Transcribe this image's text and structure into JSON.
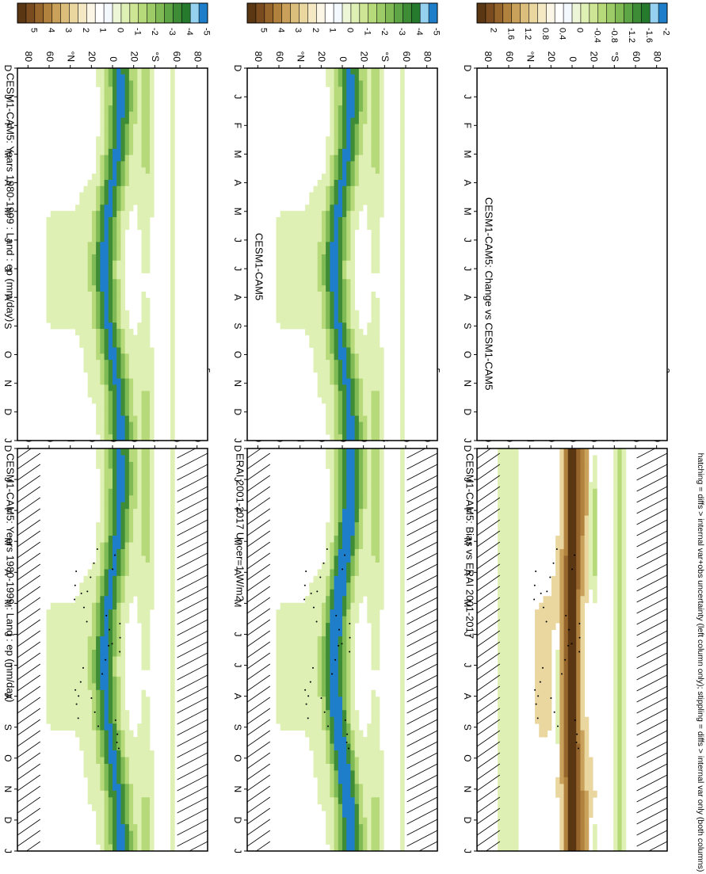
{
  "figure": {
    "footnote": "hatching = diffs > internal var+obs uncertainty (left column only); stippling = diffs > internal var only (both columns)"
  },
  "colors": {
    "brown_to_blue": [
      "#5a3612",
      "#7a4b1e",
      "#96652c",
      "#b0823e",
      "#c9a15a",
      "#dbbd7c",
      "#ead69f",
      "#f4e9c3",
      "#fbf6e6",
      "#ffffff",
      "#f3f8ff",
      "#eef6d8",
      "#dff0b4",
      "#cde594",
      "#b6d97a",
      "#9ccb67",
      "#7fba55",
      "#5ea545",
      "#3e8c36",
      "#257a2e",
      "#96d2ef",
      "#1f7ec9"
    ],
    "axis": "#000000",
    "frame_bg": "#ffffff"
  },
  "chart_data": [
    {
      "id": "p1",
      "type": "heatmap",
      "title": "CESM1-CAM5: Years 1980-1999 : Land : ep (mm/day)",
      "x_tick_labels": [
        "D",
        "J",
        "F",
        "M",
        "A",
        "M",
        "J",
        "J",
        "A",
        "S",
        "O",
        "N",
        "D",
        "J"
      ],
      "y_tick_labels": [
        "80",
        "60",
        "°N",
        "20",
        "0",
        "20",
        "°S",
        "60",
        "80"
      ],
      "ylim": [
        -90,
        90
      ],
      "colorbar": {
        "labels": [
          "5",
          "4",
          "3",
          "2",
          "1",
          "0",
          "-1",
          "-2",
          "-3",
          "-4",
          "-5"
        ],
        "range": [
          5,
          -5
        ]
      },
      "pattern": "evap_climatology",
      "hatching": true,
      "stippling": true
    },
    {
      "id": "p2",
      "type": "heatmap",
      "title": "CESM1-CAM5: Years 1980-1999 : Land : ep (mm/day)",
      "x_tick_labels": [
        "D",
        "J",
        "F",
        "M",
        "A",
        "M",
        "J",
        "J",
        "A",
        "S",
        "O",
        "N",
        "D",
        "J"
      ],
      "y_tick_labels": [
        "80",
        "60",
        "°N",
        "20",
        "0",
        "20",
        "°S",
        "60",
        "80"
      ],
      "ylim": [
        -90,
        90
      ],
      "colorbar": {
        "labels": [
          "5",
          "4",
          "3",
          "2",
          "1",
          "0",
          "-1",
          "-2",
          "-3",
          "-4",
          "-5"
        ],
        "range": [
          5,
          -5
        ]
      },
      "pattern": "evap_climatology",
      "hatching": false,
      "stippling": false
    },
    {
      "id": "p3",
      "type": "heatmap",
      "title": "ERAI 2001-2017 Uncer=1 W/m2",
      "x_tick_labels": [
        "D",
        "J",
        "F",
        "M",
        "A",
        "M",
        "J",
        "J",
        "A",
        "S",
        "O",
        "N",
        "D",
        "J"
      ],
      "y_tick_labels": [
        "80",
        "60",
        "°N",
        "20",
        "0",
        "20",
        "°S",
        "60",
        "80"
      ],
      "ylim": [
        -90,
        90
      ],
      "colorbar": {
        "labels": [
          "5",
          "4",
          "3",
          "2",
          "1",
          "0",
          "-1",
          "-2",
          "-3",
          "-4",
          "-5"
        ],
        "range": [
          5,
          -5
        ]
      },
      "pattern": "evap_climatology_obs",
      "hatching": true,
      "stippling": true
    },
    {
      "id": "p4",
      "type": "heatmap",
      "title": "CESM1-CAM5",
      "x_tick_labels": [
        "D",
        "J",
        "F",
        "M",
        "A",
        "M",
        "J",
        "J",
        "A",
        "S",
        "O",
        "N",
        "D",
        "J"
      ],
      "y_tick_labels": [
        "80",
        "60",
        "°N",
        "20",
        "0",
        "20",
        "°S",
        "60",
        "80"
      ],
      "ylim": [
        -90,
        90
      ],
      "colorbar": {
        "labels": [
          "5",
          "4",
          "3",
          "2",
          "1",
          "0",
          "-1",
          "-2",
          "-3",
          "-4",
          "-5"
        ],
        "range": [
          5,
          -5
        ]
      },
      "pattern": "evap_climatology",
      "hatching": false,
      "stippling": false
    },
    {
      "id": "p5",
      "type": "heatmap",
      "title": "CESM1-CAM5: Bias vs ERAI 2001-2017",
      "x_tick_labels": [
        "D",
        "J",
        "F",
        "M",
        "A",
        "M",
        "J",
        "J",
        "A",
        "S",
        "O",
        "N",
        "D",
        "J"
      ],
      "y_tick_labels": [
        "80",
        "60",
        "°N",
        "20",
        "0",
        "20",
        "°S",
        "60",
        "80"
      ],
      "ylim": [
        -90,
        90
      ],
      "colorbar": {
        "labels": [
          "2",
          "1.6",
          "1.2",
          "0.8",
          "0.4",
          "0",
          "-0.4",
          "-0.8",
          "-1.2",
          "-1.6",
          "-2"
        ],
        "range": [
          2,
          -2
        ]
      },
      "pattern": "bias",
      "hatching": true,
      "stippling": true
    },
    {
      "id": "p6",
      "type": "heatmap",
      "title": "CESM1-CAM5: Change vs CESM1-CAM5",
      "x_tick_labels": [
        "D",
        "J",
        "F",
        "M",
        "A",
        "M",
        "J",
        "J",
        "A",
        "S",
        "O",
        "N",
        "D",
        "J"
      ],
      "y_tick_labels": [
        "80",
        "60",
        "°N",
        "20",
        "0",
        "20",
        "°S",
        "60",
        "80"
      ],
      "ylim": [
        -90,
        90
      ],
      "colorbar": {
        "labels": [
          "2",
          "1.6",
          "1.2",
          "0.8",
          "0.4",
          "0",
          "-0.4",
          "-0.8",
          "-1.2",
          "-1.6",
          "-2"
        ],
        "range": [
          2,
          -2
        ]
      },
      "pattern": "empty",
      "hatching": false,
      "stippling": false
    }
  ]
}
